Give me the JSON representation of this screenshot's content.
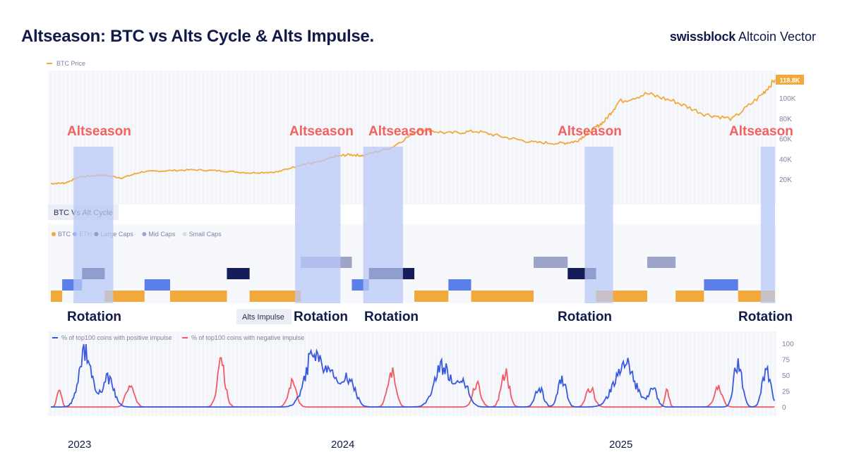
{
  "title": "Altseason: BTC vs Alts Cycle & Alts Impulse.",
  "brand": {
    "bold": "swissblock",
    "regular": "Altcoin Vector"
  },
  "colors": {
    "btc": "#f2a93b",
    "eth": "#5b7fe8",
    "large_caps": "#141c5a",
    "mid_caps": "#9ea4c9",
    "small_caps": "#d6d9e9",
    "positive": "#3858e0",
    "negative": "#ef5b67",
    "altseason_label": "#f2615f",
    "rotation_label": "#121a4a",
    "highlight": "#b8c8f7"
  },
  "chart_data": [
    {
      "type": "line",
      "panel": "BTC Price",
      "legend": [
        "BTC Price"
      ],
      "last_value_label": "118.8K",
      "y_ticks": [
        "20K",
        "40K",
        "60K",
        "80K",
        "100K"
      ],
      "ylim": [
        0,
        125
      ],
      "x": [
        2023.0,
        2023.05,
        2023.1,
        2023.18,
        2023.25,
        2023.32,
        2023.4,
        2023.5,
        2023.6,
        2023.7,
        2023.8,
        2023.88,
        2023.95,
        2024.0,
        2024.05,
        2024.1,
        2024.2,
        2024.3,
        2024.4,
        2024.5,
        2024.6,
        2024.7,
        2024.8,
        2024.85,
        2024.9,
        2024.95,
        2025.0,
        2025.1,
        2025.2,
        2025.3,
        2025.4,
        2025.5,
        2025.55
      ],
      "values": [
        16.5,
        17,
        23,
        25,
        22,
        28,
        29,
        30,
        29,
        27,
        28,
        35,
        38,
        43,
        45,
        44,
        52,
        70,
        66,
        68,
        62,
        57,
        56,
        58,
        68,
        78,
        97,
        105,
        97,
        85,
        80,
        103,
        118.8
      ]
    },
    {
      "type": "heatmap",
      "panel": "BTC Vs Alt Cycle",
      "legend": [
        "BTC",
        "ETH",
        "Large Caps",
        "Mid Caps",
        "Small Caps"
      ],
      "x_range": [
        2023.0,
        2025.55
      ],
      "segments": [
        {
          "start": 2023.0,
          "end": 2023.04,
          "cls": "BTC"
        },
        {
          "start": 2023.04,
          "end": 2023.11,
          "cls": "ETH"
        },
        {
          "start": 2023.11,
          "end": 2023.19,
          "cls": "Large Caps"
        },
        {
          "start": 2023.19,
          "end": 2023.33,
          "cls": "BTC"
        },
        {
          "start": 2023.33,
          "end": 2023.42,
          "cls": "ETH"
        },
        {
          "start": 2023.42,
          "end": 2023.62,
          "cls": "BTC"
        },
        {
          "start": 2023.62,
          "end": 2023.7,
          "cls": "Large Caps"
        },
        {
          "start": 2023.7,
          "end": 2023.88,
          "cls": "BTC"
        },
        {
          "start": 2023.88,
          "end": 2024.06,
          "cls": "Mid Caps"
        },
        {
          "start": 2024.06,
          "end": 2024.12,
          "cls": "ETH"
        },
        {
          "start": 2024.12,
          "end": 2024.28,
          "cls": "Large Caps"
        },
        {
          "start": 2024.28,
          "end": 2024.4,
          "cls": "BTC"
        },
        {
          "start": 2024.4,
          "end": 2024.48,
          "cls": "ETH"
        },
        {
          "start": 2024.48,
          "end": 2024.7,
          "cls": "BTC"
        },
        {
          "start": 2024.7,
          "end": 2024.82,
          "cls": "Mid Caps"
        },
        {
          "start": 2024.82,
          "end": 2024.92,
          "cls": "Large Caps"
        },
        {
          "start": 2024.92,
          "end": 2025.1,
          "cls": "BTC"
        },
        {
          "start": 2025.1,
          "end": 2025.2,
          "cls": "Mid Caps"
        },
        {
          "start": 2025.2,
          "end": 2025.3,
          "cls": "BTC"
        },
        {
          "start": 2025.3,
          "end": 2025.42,
          "cls": "ETH"
        },
        {
          "start": 2025.42,
          "end": 2025.55,
          "cls": "BTC"
        }
      ]
    },
    {
      "type": "line",
      "panel": "Alts Impulse",
      "legend": [
        "% of top100 coins with positive impulse",
        "% of top100 coins with negative impulse"
      ],
      "y_ticks": [
        "0",
        "25",
        "50",
        "75",
        "100"
      ],
      "ylim": [
        0,
        100
      ],
      "series": [
        {
          "name": "% of top100 coins with positive impulse",
          "peaks": [
            [
              2023.12,
              95,
              0.03
            ],
            [
              2023.2,
              45,
              0.03
            ],
            [
              2023.92,
              75,
              0.04
            ],
            [
              2023.98,
              55,
              0.04
            ],
            [
              2024.05,
              45,
              0.03
            ],
            [
              2024.38,
              65,
              0.04
            ],
            [
              2024.45,
              40,
              0.03
            ],
            [
              2024.72,
              30,
              0.02
            ],
            [
              2024.8,
              45,
              0.02
            ],
            [
              2025.02,
              70,
              0.05
            ],
            [
              2025.12,
              30,
              0.02
            ],
            [
              2025.42,
              75,
              0.02
            ],
            [
              2025.52,
              62,
              0.02
            ]
          ]
        },
        {
          "name": "% of top100 coins with negative impulse",
          "peaks": [
            [
              2023.03,
              35,
              0.01
            ],
            [
              2023.28,
              40,
              0.02
            ],
            [
              2023.6,
              70,
              0.02
            ],
            [
              2023.85,
              38,
              0.02
            ],
            [
              2024.2,
              60,
              0.02
            ],
            [
              2024.5,
              35,
              0.02
            ],
            [
              2024.6,
              55,
              0.02
            ],
            [
              2024.9,
              30,
              0.02
            ],
            [
              2025.17,
              25,
              0.01
            ],
            [
              2025.35,
              30,
              0.02
            ]
          ]
        }
      ]
    }
  ],
  "altseason_windows": [
    {
      "start": 2023.08,
      "end": 2023.22,
      "label": "Altseason",
      "rotation": "Rotation"
    },
    {
      "start": 2023.86,
      "end": 2024.02,
      "label": "Altseason",
      "rotation": "Rotation"
    },
    {
      "start": 2024.1,
      "end": 2024.24,
      "label": "Altseason",
      "rotation": "Rotation"
    },
    {
      "start": 2024.88,
      "end": 2024.98,
      "label": "Altseason",
      "rotation": "Rotation"
    },
    {
      "start": 2025.5,
      "end": 2025.55,
      "label": "Altseason",
      "rotation": "Rotation"
    }
  ],
  "panel_titles": {
    "cycle": "BTC Vs Alt Cycle",
    "impulse": "Alts Impulse"
  },
  "years": [
    "2023",
    "2024",
    "2025"
  ]
}
